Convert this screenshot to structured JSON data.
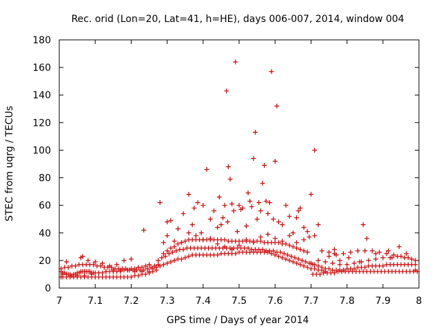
{
  "chart_data": {
    "type": "scatter",
    "title": "Rec. orid (Lon=20, Lat=41, h=HE), days 006-007, 2014, window 004",
    "xlabel": "GPS time / Days of year 2014",
    "ylabel": "STEC from uqrg / TECUs",
    "xlim": [
      7,
      8
    ],
    "ylim": [
      0,
      180
    ],
    "xticks": [
      "7",
      "7.1",
      "7.2",
      "7.3",
      "7.4",
      "7.5",
      "7.6",
      "7.7",
      "7.8",
      "7.9",
      "8"
    ],
    "yticks": [
      "0",
      "20",
      "40",
      "60",
      "80",
      "100",
      "120",
      "140",
      "160",
      "180"
    ],
    "marker_color": "#cc0000",
    "marker": "plus",
    "series": [
      {
        "name": "STEC",
        "x": [
          7.005,
          7.01,
          7.015,
          7.02,
          7.025,
          7.03,
          7.035,
          7.04,
          7.045,
          7.05,
          7.055,
          7.06,
          7.065,
          7.07,
          7.075,
          7.08,
          7.085,
          7.09,
          7.095,
          7.1,
          7.11,
          7.12,
          7.13,
          7.14,
          7.15,
          7.16,
          7.17,
          7.18,
          7.19,
          7.2,
          7.21,
          7.22,
          7.23,
          7.24,
          7.25,
          7.005,
          7.01,
          7.02,
          7.03,
          7.04,
          7.05,
          7.06,
          7.07,
          7.08,
          7.09,
          7.1,
          7.11,
          7.12,
          7.13,
          7.14,
          7.15,
          7.16,
          7.17,
          7.18,
          7.19,
          7.2,
          7.21,
          7.22,
          7.23,
          7.24,
          7.25,
          7.26,
          7.005,
          7.015,
          7.025,
          7.035,
          7.045,
          7.055,
          7.065,
          7.075,
          7.085,
          7.095,
          7.105,
          7.115,
          7.125,
          7.135,
          7.145,
          7.155,
          7.165,
          7.175,
          7.185,
          7.195,
          7.205,
          7.215,
          7.225,
          7.235,
          7.245,
          7.255,
          7.265,
          7.275,
          7.01,
          7.03,
          7.05,
          7.07,
          7.09,
          7.11,
          7.13,
          7.15,
          7.17,
          7.19,
          7.21,
          7.23,
          7.25,
          7.27,
          7.02,
          7.06,
          7.065,
          7.08,
          7.1,
          7.12,
          7.14,
          7.16,
          7.18,
          7.2,
          7.26,
          7.27,
          7.28,
          7.29,
          7.3,
          7.31,
          7.32,
          7.33,
          7.34,
          7.35,
          7.36,
          7.37,
          7.38,
          7.39,
          7.4,
          7.41,
          7.42,
          7.43,
          7.44,
          7.45,
          7.46,
          7.47,
          7.48,
          7.49,
          7.5,
          7.51,
          7.52,
          7.53,
          7.54,
          7.55,
          7.56,
          7.57,
          7.58,
          7.59,
          7.6,
          7.61,
          7.62,
          7.63,
          7.64,
          7.65,
          7.66,
          7.67,
          7.68,
          7.69,
          7.7,
          7.71,
          7.72,
          7.73,
          7.74,
          7.275,
          7.285,
          7.295,
          7.305,
          7.315,
          7.325,
          7.335,
          7.345,
          7.355,
          7.365,
          7.375,
          7.385,
          7.395,
          7.405,
          7.415,
          7.425,
          7.435,
          7.445,
          7.455,
          7.465,
          7.475,
          7.485,
          7.495,
          7.505,
          7.515,
          7.525,
          7.535,
          7.545,
          7.555,
          7.565,
          7.575,
          7.585,
          7.595,
          7.605,
          7.615,
          7.625,
          7.635,
          7.645,
          7.655,
          7.665,
          7.675,
          7.685,
          7.695,
          7.705,
          7.29,
          7.3,
          7.31,
          7.32,
          7.33,
          7.34,
          7.35,
          7.36,
          7.37,
          7.38,
          7.39,
          7.4,
          7.41,
          7.42,
          7.43,
          7.44,
          7.45,
          7.46,
          7.47,
          7.48,
          7.49,
          7.5,
          7.51,
          7.52,
          7.53,
          7.54,
          7.55,
          7.56,
          7.57,
          7.58,
          7.59,
          7.6,
          7.61,
          7.62,
          7.63,
          7.64,
          7.65,
          7.66,
          7.67,
          7.68,
          7.69,
          7.3,
          7.32,
          7.34,
          7.36,
          7.38,
          7.4,
          7.42,
          7.44,
          7.46,
          7.48,
          7.5,
          7.52,
          7.54,
          7.56,
          7.58,
          7.6,
          7.62,
          7.64,
          7.66,
          7.68,
          7.235,
          7.28,
          7.29,
          7.3,
          7.31,
          7.33,
          7.345,
          7.36,
          7.37,
          7.375,
          7.385,
          7.395,
          7.4,
          7.41,
          7.42,
          7.43,
          7.44,
          7.445,
          7.45,
          7.455,
          7.46,
          7.465,
          7.468,
          7.47,
          7.475,
          7.48,
          7.485,
          7.49,
          7.495,
          7.5,
          7.505,
          7.51,
          7.52,
          7.525,
          7.53,
          7.535,
          7.54,
          7.545,
          7.55,
          7.555,
          7.56,
          7.565,
          7.57,
          7.575,
          7.58,
          7.585,
          7.59,
          7.595,
          7.6,
          7.605,
          7.61,
          7.62,
          7.63,
          7.64,
          7.65,
          7.66,
          7.665,
          7.67,
          7.68,
          7.69,
          7.695,
          7.7,
          7.71,
          7.72,
          7.7,
          7.71,
          7.72,
          7.73,
          7.74,
          7.75,
          7.76,
          7.77,
          7.78,
          7.79,
          7.8,
          7.81,
          7.82,
          7.83,
          7.84,
          7.85,
          7.86,
          7.87,
          7.88,
          7.89,
          7.9,
          7.91,
          7.92,
          7.93,
          7.94,
          7.95,
          7.96,
          7.97,
          7.98,
          7.99,
          7.705,
          7.715,
          7.725,
          7.735,
          7.745,
          7.755,
          7.765,
          7.775,
          7.785,
          7.795,
          7.805,
          7.815,
          7.825,
          7.835,
          7.845,
          7.855,
          7.865,
          7.875,
          7.885,
          7.895,
          7.905,
          7.915,
          7.925,
          7.935,
          7.945,
          7.955,
          7.965,
          7.975,
          7.985,
          7.995,
          7.72,
          7.74,
          7.76,
          7.78,
          7.8,
          7.82,
          7.84,
          7.86,
          7.88,
          7.9,
          7.92,
          7.94,
          7.96,
          7.98,
          7.73,
          7.75,
          7.765,
          7.77,
          7.79,
          7.81,
          7.83,
          7.85,
          7.87,
          7.89,
          7.91,
          7.93,
          7.95,
          7.97,
          7.99,
          7.71,
          7.75,
          7.765,
          7.78,
          7.805,
          7.835,
          7.845,
          7.855,
          7.88,
          7.915,
          7.925,
          7.945,
          7.965,
          7.99
        ],
        "y": [
          12,
          11,
          11,
          10,
          10,
          9,
          9,
          10,
          10,
          11,
          11,
          12,
          12,
          12,
          12,
          12,
          12,
          11,
          11,
          11,
          11,
          11,
          12,
          12,
          12,
          12,
          12,
          13,
          13,
          14,
          14,
          15,
          15,
          16,
          17,
          8,
          8,
          8,
          8,
          8,
          8,
          8,
          8,
          8,
          8,
          8,
          8,
          8,
          8,
          8,
          8,
          8,
          8,
          8,
          8,
          8,
          9,
          9,
          10,
          10,
          11,
          12,
          14,
          15,
          15,
          16,
          16,
          17,
          17,
          17,
          17,
          17,
          16,
          16,
          15,
          15,
          15,
          14,
          14,
          14,
          14,
          13,
          13,
          13,
          13,
          13,
          14,
          15,
          16,
          17,
          10,
          10,
          9,
          9,
          10,
          11,
          12,
          13,
          13,
          13,
          12,
          12,
          12,
          13,
          19,
          22,
          23,
          20,
          19,
          18,
          16,
          17,
          20,
          21,
          14,
          15,
          16,
          17,
          18,
          19,
          20,
          21,
          21,
          22,
          23,
          24,
          24,
          24,
          24,
          24,
          24,
          24,
          24,
          25,
          25,
          25,
          25,
          25,
          26,
          26,
          26,
          26,
          26,
          26,
          26,
          26,
          26,
          25,
          24,
          23,
          22,
          21,
          20,
          19,
          18,
          17,
          16,
          15,
          14,
          14,
          13,
          13,
          12,
          20,
          22,
          23,
          25,
          26,
          27,
          28,
          28,
          29,
          29,
          29,
          29,
          29,
          29,
          29,
          29,
          29,
          29,
          29,
          29,
          29,
          29,
          29,
          29,
          29,
          29,
          28,
          28,
          28,
          28,
          27,
          27,
          27,
          26,
          26,
          25,
          24,
          23,
          22,
          21,
          20,
          19,
          18,
          17,
          25,
          27,
          29,
          30,
          32,
          33,
          34,
          35,
          35,
          35,
          35,
          35,
          35,
          35,
          35,
          35,
          35,
          35,
          34,
          34,
          34,
          34,
          34,
          34,
          34,
          34,
          34,
          34,
          33,
          33,
          33,
          33,
          33,
          32,
          32,
          31,
          30,
          29,
          28,
          27,
          26,
          38,
          34,
          33,
          40,
          38,
          35,
          36,
          32,
          30,
          28,
          31,
          35,
          33,
          37,
          39,
          36,
          34,
          38,
          33,
          35,
          42,
          62,
          33,
          48,
          49,
          43,
          54,
          68,
          46,
          58,
          62,
          40,
          60,
          86,
          50,
          56,
          44,
          66,
          46,
          51,
          60,
          143,
          48,
          88,
          79,
          61,
          56,
          164,
          41,
          60,
          57,
          58,
          45,
          69,
          63,
          59,
          94,
          113,
          50,
          62,
          56,
          76,
          89,
          63,
          54,
          62,
          157,
          50,
          92,
          132,
          48,
          46,
          60,
          52,
          40,
          51,
          56,
          58,
          44,
          41,
          37,
          68,
          100,
          46,
          18,
          17,
          16,
          15,
          14,
          14,
          13,
          13,
          13,
          13,
          14,
          14,
          14,
          15,
          15,
          15,
          16,
          16,
          16,
          16,
          16,
          17,
          17,
          17,
          17,
          17,
          17,
          17,
          17,
          17,
          10,
          10,
          10,
          11,
          11,
          11,
          11,
          12,
          12,
          12,
          12,
          12,
          12,
          12,
          12,
          12,
          12,
          12,
          12,
          12,
          12,
          12,
          12,
          12,
          12,
          12,
          12,
          12,
          12,
          12,
          20,
          19,
          18,
          17,
          17,
          18,
          19,
          20,
          21,
          22,
          22,
          23,
          22,
          21,
          27,
          26,
          25,
          24,
          25,
          26,
          27,
          27,
          27,
          26,
          25,
          24,
          23,
          22,
          20,
          38,
          23,
          28,
          20,
          22,
          19,
          46,
          36,
          25,
          27,
          22,
          30,
          25,
          13
        ]
      }
    ]
  }
}
